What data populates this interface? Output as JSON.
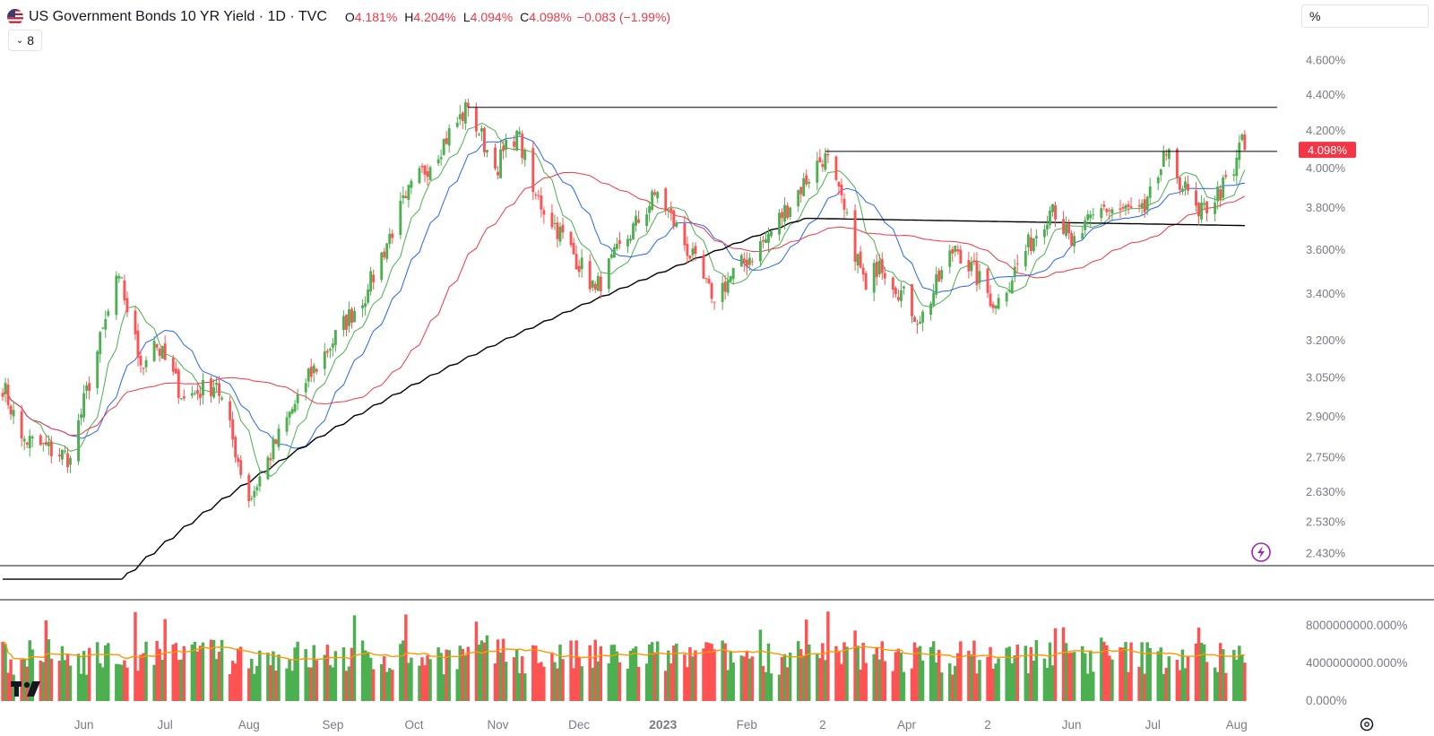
{
  "header": {
    "title": "US Government Bonds 10 YR Yield · 1D · TVC",
    "open_label": "O",
    "open": "4.181%",
    "high_label": "H",
    "high": "4.204%",
    "low_label": "L",
    "low": "4.094%",
    "close_label": "C",
    "close": "4.098%",
    "change": "−0.083 (−1.99%)",
    "indicator_count": "8",
    "unit": "%"
  },
  "colors": {
    "up": "#4caf50",
    "down": "#ff5252",
    "text": "#131722",
    "axis_text": "#787b86",
    "ma_green": "#4caf50",
    "ma_blue": "#2962ff",
    "ma_red": "#f23645",
    "ma_black": "#000000",
    "volume_ma": "#ff9800",
    "price_tag": "#f23645",
    "bolt": "#9c27b0"
  },
  "icons": {
    "flag": "us-flag-icon",
    "indicator": "chevron-down-icon",
    "bolt": "lightning-icon",
    "settings": "gear-icon",
    "logo": "tradingview-logo"
  },
  "chart_data": {
    "type": "candlestick",
    "scale": "log",
    "last_price_label": "4.098%",
    "price_ticks": [
      "4.600%",
      "4.400%",
      "4.200%",
      "4.000%",
      "3.800%",
      "3.600%",
      "3.400%",
      "3.200%",
      "3.050%",
      "2.900%",
      "2.750%",
      "2.630%",
      "2.530%",
      "2.430%"
    ],
    "volume_ticks": [
      "8000000000.000%",
      "4000000000.000%",
      "0.000%"
    ],
    "x_labels": [
      "Jun",
      "Jul",
      "Aug",
      "Sep",
      "Oct",
      "Nov",
      "Dec",
      "2023",
      "Feb",
      "2",
      "Apr",
      "2",
      "Jun",
      "Jul",
      "Aug"
    ],
    "key_points": [
      {
        "date": "2022-05-01",
        "value": 3.05
      },
      {
        "date": "2022-05-09",
        "value": 2.82
      },
      {
        "date": "2022-05-27",
        "value": 2.75
      },
      {
        "date": "2022-06-14",
        "value": 3.48
      },
      {
        "date": "2022-06-22",
        "value": 3.1
      },
      {
        "date": "2022-06-27",
        "value": 3.2
      },
      {
        "date": "2022-07-08",
        "value": 2.97
      },
      {
        "date": "2022-07-20",
        "value": 3.03
      },
      {
        "date": "2022-08-01",
        "value": 2.6
      },
      {
        "date": "2022-08-22",
        "value": 3.03
      },
      {
        "date": "2022-09-14",
        "value": 3.42
      },
      {
        "date": "2022-09-28",
        "value": 3.85
      },
      {
        "date": "2022-10-21",
        "value": 4.33
      },
      {
        "date": "2022-10-31",
        "value": 4.0
      },
      {
        "date": "2022-11-08",
        "value": 4.2
      },
      {
        "date": "2022-11-14",
        "value": 3.88
      },
      {
        "date": "2022-12-07",
        "value": 3.42
      },
      {
        "date": "2022-12-30",
        "value": 3.88
      },
      {
        "date": "2023-01-19",
        "value": 3.38
      },
      {
        "date": "2023-02-08",
        "value": 3.65
      },
      {
        "date": "2023-03-02",
        "value": 4.08
      },
      {
        "date": "2023-03-17",
        "value": 3.42
      },
      {
        "date": "2023-03-22",
        "value": 3.55
      },
      {
        "date": "2023-04-06",
        "value": 3.28
      },
      {
        "date": "2023-04-19",
        "value": 3.62
      },
      {
        "date": "2023-05-04",
        "value": 3.35
      },
      {
        "date": "2023-05-25",
        "value": 3.82
      },
      {
        "date": "2023-06-01",
        "value": 3.62
      },
      {
        "date": "2023-06-12",
        "value": 3.8
      },
      {
        "date": "2023-06-28",
        "value": 3.78
      },
      {
        "date": "2023-07-06",
        "value": 4.07
      },
      {
        "date": "2023-07-18",
        "value": 3.76
      },
      {
        "date": "2023-07-31",
        "value": 3.97
      },
      {
        "date": "2023-08-03",
        "value": 4.18
      },
      {
        "date": "2023-08-04",
        "value": 4.098
      }
    ],
    "horizontal_lines": [
      {
        "from": "2022-10-21",
        "value": 4.33
      },
      {
        "from": "2023-03-02",
        "value": 4.09
      }
    ],
    "moving_averages": [
      {
        "color": "green",
        "period": 10
      },
      {
        "color": "blue",
        "period": 20
      },
      {
        "color": "red",
        "period": 50
      },
      {
        "color": "black",
        "period": 200
      }
    ],
    "volume_ma_period": 20
  }
}
